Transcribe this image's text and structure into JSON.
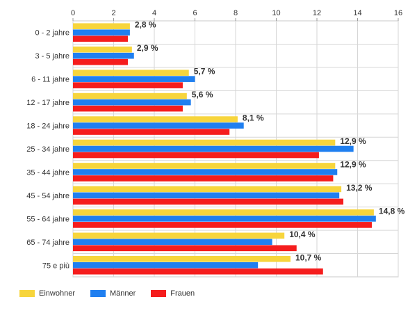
{
  "chart_data": {
    "type": "bar",
    "orientation": "horizontal",
    "categories": [
      "0 - 2 jahre",
      "3 - 5 jahre",
      "6 - 11 jahre",
      "12 - 17 jahre",
      "18 - 24 jahre",
      "25 - 34 jahre",
      "35 - 44 jahre",
      "45 - 54 jahre",
      "55 - 64 jahre",
      "65 - 74 jahre",
      "75 e più"
    ],
    "series": [
      {
        "name": "Einwohner",
        "color": "#f7d53c",
        "values": [
          2.8,
          2.9,
          5.7,
          5.6,
          8.1,
          12.9,
          12.9,
          13.2,
          14.8,
          10.4,
          10.7
        ]
      },
      {
        "name": "Männer",
        "color": "#1f7ff0",
        "values": [
          2.8,
          3.0,
          6.0,
          5.8,
          8.4,
          13.8,
          13.0,
          13.1,
          14.9,
          9.8,
          9.1
        ]
      },
      {
        "name": "Frauen",
        "color": "#f51d1d",
        "values": [
          2.7,
          2.7,
          5.4,
          5.4,
          7.7,
          12.1,
          12.8,
          13.3,
          14.7,
          11.0,
          12.3
        ]
      }
    ],
    "data_labels": [
      "2,8 %",
      "2,9 %",
      "5,7 %",
      "5,6 %",
      "8,1 %",
      "12,9 %",
      "12,9 %",
      "13,2 %",
      "14,8 %",
      "10,4 %",
      "10,7 %"
    ],
    "x_ticks": [
      "0",
      "2",
      "4",
      "6",
      "8",
      "10",
      "12",
      "14",
      "16"
    ],
    "xlim": [
      0,
      16
    ],
    "grid": true,
    "legend_position": "bottom-left"
  }
}
